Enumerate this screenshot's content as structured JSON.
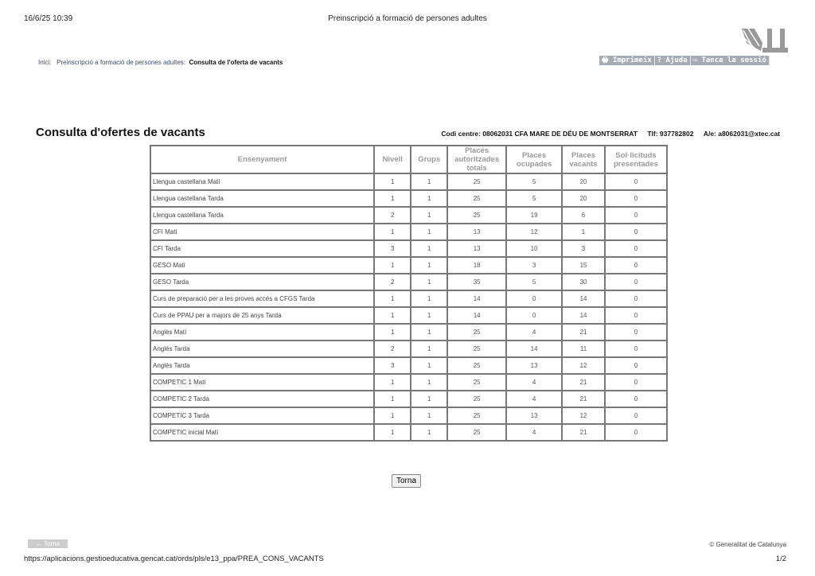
{
  "print_header": {
    "datetime": "16/6/25 10:39",
    "title": "Preinscripció a formació de persones adultes"
  },
  "breadcrumb": {
    "home": "Inici:",
    "section": "Preinscripció a formació de persones adultes:",
    "current": "Consulta de l'oferta de vacants"
  },
  "toolbar": {
    "print": "🖶 Imprimeix",
    "help": "? Ajuda",
    "logout": "⇨ Tanca la sessió"
  },
  "page": {
    "heading": "Consulta d'ofertes de vacants",
    "centre": "Codi centre: 08062031 CFA MARE DE DÉU DE MONTSERRAT",
    "phone": "Tlf: 937782802",
    "email": "A/e: a8062031@xtec.cat"
  },
  "table": {
    "headers": [
      "Ensenyament",
      "Nivell",
      "Grups",
      "Places autoritzades totals",
      "Places ocupades",
      "Places vacants",
      "Sol·licituds presentades"
    ],
    "rows": [
      [
        "Llengua castellana Matí",
        "1",
        "1",
        "25",
        "5",
        "20",
        "0"
      ],
      [
        "Llengua castellana Tarda",
        "1",
        "1",
        "25",
        "5",
        "20",
        "0"
      ],
      [
        "Llengua castellana Tarda",
        "2",
        "1",
        "25",
        "19",
        "6",
        "0"
      ],
      [
        "CFI Matí",
        "1",
        "1",
        "13",
        "12",
        "1",
        "0"
      ],
      [
        "CFI Tarda",
        "3",
        "1",
        "13",
        "10",
        "3",
        "0"
      ],
      [
        "GESO Matí",
        "1",
        "1",
        "18",
        "3",
        "15",
        "0"
      ],
      [
        "GESO Tarda",
        "2",
        "1",
        "35",
        "5",
        "30",
        "0"
      ],
      [
        "Curs de preparació per a les proves accés a CFGS Tarda",
        "1",
        "1",
        "14",
        "0",
        "14",
        "0"
      ],
      [
        "Curs de PPAU per a majors de 25 anys Tarda",
        "1",
        "1",
        "14",
        "0",
        "14",
        "0"
      ],
      [
        "Anglès Matí",
        "1",
        "1",
        "25",
        "4",
        "21",
        "0"
      ],
      [
        "Anglès Tarda",
        "2",
        "1",
        "25",
        "14",
        "11",
        "0"
      ],
      [
        "Anglès Tarda",
        "3",
        "1",
        "25",
        "13",
        "12",
        "0"
      ],
      [
        "COMPETIC 1 Matí",
        "1",
        "1",
        "25",
        "4",
        "21",
        "0"
      ],
      [
        "COMPETIC 2 Tarda",
        "1",
        "1",
        "25",
        "4",
        "21",
        "0"
      ],
      [
        "COMPETIC 3 Tarda",
        "1",
        "1",
        "25",
        "13",
        "12",
        "0"
      ],
      [
        "COMPETIC inicial Matí",
        "1",
        "1",
        "25",
        "4",
        "21",
        "0"
      ]
    ]
  },
  "buttons": {
    "back": "Torna",
    "back_footer": "← Torna"
  },
  "footer": {
    "copyright": "© Generalitat de Catalunya",
    "url": "https://aplicacions.gestioeducativa.gencat.cat/ords/pls/e13_ppa/PREA_CONS_VACANTS",
    "page": "1/2"
  }
}
